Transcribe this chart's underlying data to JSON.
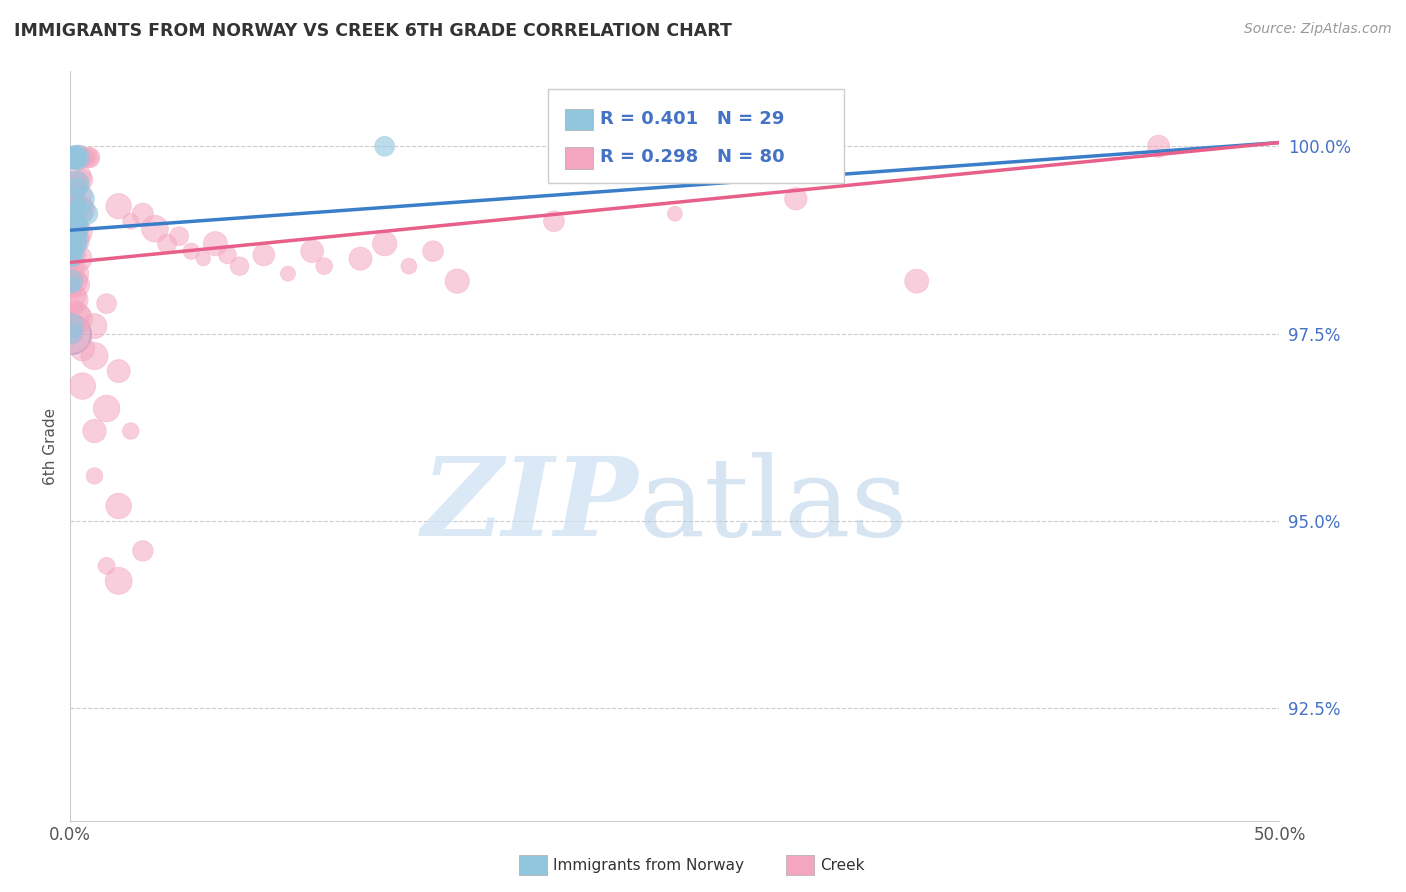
{
  "title": "IMMIGRANTS FROM NORWAY VS CREEK 6TH GRADE CORRELATION CHART",
  "source": "Source: ZipAtlas.com",
  "ylabel": "6th Grade",
  "y_tick_labels": [
    "100.0%",
    "97.5%",
    "95.0%",
    "92.5%"
  ],
  "y_tick_values": [
    100.0,
    97.5,
    95.0,
    92.5
  ],
  "x_min": 0.0,
  "x_max": 50.0,
  "y_min": 91.0,
  "y_max": 101.0,
  "blue_color": "#92c5de",
  "pink_color": "#f4a6c0",
  "blue_line_color": "#3a7dc9",
  "pink_line_color": "#e8608a",
  "blue_trend": [
    0.0,
    98.88,
    50.0,
    100.05
  ],
  "pink_trend": [
    0.0,
    98.45,
    50.0,
    100.05
  ],
  "blue_points": [
    [
      0.1,
      99.85
    ],
    [
      0.12,
      99.85
    ],
    [
      0.15,
      99.85
    ],
    [
      0.18,
      99.85
    ],
    [
      0.2,
      99.85
    ],
    [
      0.22,
      99.85
    ],
    [
      0.25,
      99.85
    ],
    [
      0.28,
      99.85
    ],
    [
      0.25,
      99.5
    ],
    [
      0.3,
      99.45
    ],
    [
      0.5,
      99.3
    ],
    [
      0.7,
      99.1
    ],
    [
      0.1,
      99.0
    ],
    [
      0.15,
      98.95
    ],
    [
      0.2,
      99.15
    ],
    [
      0.3,
      99.2
    ],
    [
      0.35,
      99.25
    ],
    [
      0.4,
      99.1
    ],
    [
      0.2,
      98.85
    ],
    [
      0.25,
      98.9
    ],
    [
      0.15,
      98.75
    ],
    [
      0.2,
      98.7
    ],
    [
      0.1,
      98.6
    ],
    [
      0.05,
      98.55
    ],
    [
      0.08,
      98.5
    ],
    [
      0.05,
      98.2
    ],
    [
      0.07,
      98.15
    ],
    [
      0.02,
      97.6
    ],
    [
      0.05,
      97.5
    ],
    [
      13.0,
      100.0
    ]
  ],
  "blue_large_dot": [
    0.02,
    97.5,
    800
  ],
  "pink_points": [
    [
      0.3,
      99.85
    ],
    [
      0.35,
      99.85
    ],
    [
      0.5,
      99.85
    ],
    [
      0.55,
      99.85
    ],
    [
      0.6,
      99.85
    ],
    [
      0.65,
      99.85
    ],
    [
      0.7,
      99.85
    ],
    [
      0.75,
      99.85
    ],
    [
      0.8,
      99.85
    ],
    [
      0.4,
      99.6
    ],
    [
      0.5,
      99.55
    ],
    [
      0.2,
      99.5
    ],
    [
      0.25,
      99.4
    ],
    [
      0.35,
      99.35
    ],
    [
      0.15,
      99.3
    ],
    [
      0.2,
      99.25
    ],
    [
      0.5,
      99.2
    ],
    [
      0.55,
      99.15
    ],
    [
      0.25,
      99.1
    ],
    [
      0.3,
      99.05
    ],
    [
      0.1,
      99.0
    ],
    [
      0.15,
      98.95
    ],
    [
      0.35,
      98.9
    ],
    [
      0.4,
      98.85
    ],
    [
      0.2,
      98.8
    ],
    [
      0.25,
      98.75
    ],
    [
      0.15,
      98.7
    ],
    [
      0.2,
      98.65
    ],
    [
      0.3,
      98.55
    ],
    [
      0.35,
      98.5
    ],
    [
      0.1,
      98.45
    ],
    [
      0.15,
      98.35
    ],
    [
      0.2,
      98.3
    ],
    [
      0.25,
      98.2
    ],
    [
      0.3,
      98.15
    ],
    [
      0.1,
      98.1
    ],
    [
      0.15,
      98.0
    ],
    [
      0.2,
      97.95
    ],
    [
      0.25,
      97.85
    ],
    [
      0.3,
      97.75
    ],
    [
      0.35,
      97.7
    ],
    [
      0.1,
      97.6
    ],
    [
      0.15,
      97.5
    ],
    [
      2.0,
      99.2
    ],
    [
      2.5,
      99.0
    ],
    [
      3.0,
      99.1
    ],
    [
      3.5,
      98.9
    ],
    [
      4.0,
      98.7
    ],
    [
      4.5,
      98.8
    ],
    [
      5.0,
      98.6
    ],
    [
      5.5,
      98.5
    ],
    [
      6.0,
      98.7
    ],
    [
      6.5,
      98.55
    ],
    [
      7.0,
      98.4
    ],
    [
      8.0,
      98.55
    ],
    [
      9.0,
      98.3
    ],
    [
      10.0,
      98.6
    ],
    [
      10.5,
      98.4
    ],
    [
      12.0,
      98.5
    ],
    [
      13.0,
      98.7
    ],
    [
      14.0,
      98.4
    ],
    [
      15.0,
      98.6
    ],
    [
      16.0,
      98.2
    ],
    [
      20.0,
      99.0
    ],
    [
      25.0,
      99.1
    ],
    [
      30.0,
      99.3
    ],
    [
      35.0,
      98.2
    ],
    [
      45.0,
      100.0
    ],
    [
      1.0,
      97.2
    ],
    [
      2.0,
      97.0
    ],
    [
      1.5,
      96.5
    ],
    [
      2.5,
      96.2
    ],
    [
      1.0,
      95.6
    ],
    [
      2.0,
      95.2
    ],
    [
      3.0,
      94.6
    ],
    [
      1.5,
      94.4
    ],
    [
      2.0,
      94.2
    ],
    [
      1.5,
      97.9
    ],
    [
      1.0,
      97.6
    ],
    [
      0.5,
      97.3
    ],
    [
      0.5,
      96.8
    ],
    [
      1.0,
      96.2
    ]
  ]
}
